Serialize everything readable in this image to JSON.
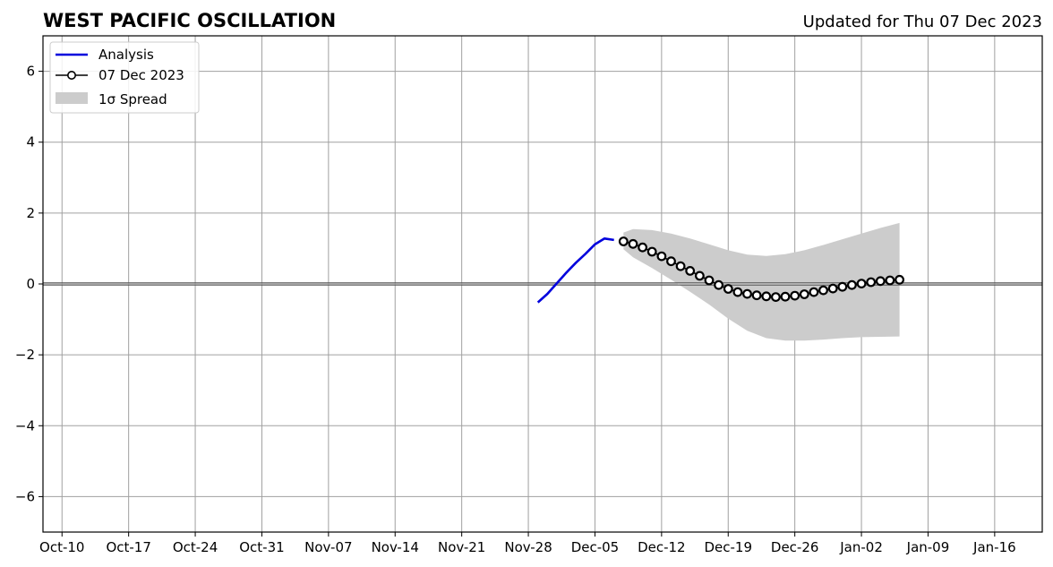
{
  "header": {
    "title": "WEST PACIFIC OSCILLATION",
    "updated": "Updated for Thu 07 Dec 2023"
  },
  "chart_data": {
    "type": "line",
    "title": "WEST PACIFIC OSCILLATION",
    "xlabel": "",
    "ylabel": "",
    "x_axis": {
      "type": "date",
      "range": [
        "2023-10-08",
        "2024-01-21"
      ],
      "ticks": [
        {
          "date": "2023-10-10",
          "label": "Oct-10"
        },
        {
          "date": "2023-10-17",
          "label": "Oct-17"
        },
        {
          "date": "2023-10-24",
          "label": "Oct-24"
        },
        {
          "date": "2023-10-31",
          "label": "Oct-31"
        },
        {
          "date": "2023-11-07",
          "label": "Nov-07"
        },
        {
          "date": "2023-11-14",
          "label": "Nov-14"
        },
        {
          "date": "2023-11-21",
          "label": "Nov-21"
        },
        {
          "date": "2023-11-28",
          "label": "Nov-28"
        },
        {
          "date": "2023-12-05",
          "label": "Dec-05"
        },
        {
          "date": "2023-12-12",
          "label": "Dec-12"
        },
        {
          "date": "2023-12-19",
          "label": "Dec-19"
        },
        {
          "date": "2023-12-26",
          "label": "Dec-26"
        },
        {
          "date": "2024-01-02",
          "label": "Jan-02"
        },
        {
          "date": "2024-01-09",
          "label": "Jan-09"
        },
        {
          "date": "2024-01-16",
          "label": "Jan-16"
        }
      ]
    },
    "y_axis": {
      "range": [
        -7,
        7
      ],
      "ticks": [
        {
          "value": -6,
          "label": "−6"
        },
        {
          "value": -4,
          "label": "−4"
        },
        {
          "value": -2,
          "label": "−2"
        },
        {
          "value": 0,
          "label": "0"
        },
        {
          "value": 2,
          "label": "2"
        },
        {
          "value": 4,
          "label": "4"
        },
        {
          "value": 6,
          "label": "6"
        }
      ]
    },
    "grid": true,
    "zero_line": true,
    "legend": {
      "placement": "top-left",
      "entries": [
        {
          "key": "analysis",
          "label": "Analysis"
        },
        {
          "key": "forecast",
          "label": "07 Dec 2023"
        },
        {
          "key": "spread",
          "label": "1σ Spread"
        }
      ]
    },
    "colors": {
      "analysis": "#0000dd",
      "forecast": "#000000",
      "spread": "#cccccc",
      "grid": "#a0a0a0"
    },
    "series": [
      {
        "key": "analysis",
        "name": "Analysis",
        "style": "line",
        "points": [
          {
            "date": "2023-11-29",
            "value": -0.52
          },
          {
            "date": "2023-11-30",
            "value": -0.28
          },
          {
            "date": "2023-12-01",
            "value": 0.02
          },
          {
            "date": "2023-12-02",
            "value": 0.32
          },
          {
            "date": "2023-12-03",
            "value": 0.6
          },
          {
            "date": "2023-12-04",
            "value": 0.85
          },
          {
            "date": "2023-12-05",
            "value": 1.12
          },
          {
            "date": "2023-12-06",
            "value": 1.28
          },
          {
            "date": "2023-12-07",
            "value": 1.24
          }
        ]
      },
      {
        "key": "forecast",
        "name": "07 Dec 2023",
        "style": "line-markers",
        "points": [
          {
            "date": "2023-12-08",
            "value": 1.2
          },
          {
            "date": "2023-12-09",
            "value": 1.13
          },
          {
            "date": "2023-12-10",
            "value": 1.03
          },
          {
            "date": "2023-12-11",
            "value": 0.91
          },
          {
            "date": "2023-12-12",
            "value": 0.78
          },
          {
            "date": "2023-12-13",
            "value": 0.64
          },
          {
            "date": "2023-12-14",
            "value": 0.5
          },
          {
            "date": "2023-12-15",
            "value": 0.37
          },
          {
            "date": "2023-12-16",
            "value": 0.23
          },
          {
            "date": "2023-12-17",
            "value": 0.1
          },
          {
            "date": "2023-12-18",
            "value": -0.03
          },
          {
            "date": "2023-12-19",
            "value": -0.14
          },
          {
            "date": "2023-12-20",
            "value": -0.23
          },
          {
            "date": "2023-12-21",
            "value": -0.28
          },
          {
            "date": "2023-12-22",
            "value": -0.32
          },
          {
            "date": "2023-12-23",
            "value": -0.35
          },
          {
            "date": "2023-12-24",
            "value": -0.37
          },
          {
            "date": "2023-12-25",
            "value": -0.36
          },
          {
            "date": "2023-12-26",
            "value": -0.33
          },
          {
            "date": "2023-12-27",
            "value": -0.29
          },
          {
            "date": "2023-12-28",
            "value": -0.23
          },
          {
            "date": "2023-12-29",
            "value": -0.18
          },
          {
            "date": "2023-12-30",
            "value": -0.13
          },
          {
            "date": "2023-12-31",
            "value": -0.08
          },
          {
            "date": "2024-01-01",
            "value": -0.03
          },
          {
            "date": "2024-01-02",
            "value": 0.01
          },
          {
            "date": "2024-01-03",
            "value": 0.05
          },
          {
            "date": "2024-01-04",
            "value": 0.08
          },
          {
            "date": "2024-01-05",
            "value": 0.1
          },
          {
            "date": "2024-01-06",
            "value": 0.12
          }
        ]
      }
    ],
    "spread": {
      "key": "spread",
      "name": "1σ Spread",
      "points": [
        {
          "date": "2023-12-08",
          "upper": 1.45,
          "lower": 0.98
        },
        {
          "date": "2023-12-09",
          "upper": 1.55,
          "lower": 0.75
        },
        {
          "date": "2023-12-11",
          "upper": 1.52,
          "lower": 0.45
        },
        {
          "date": "2023-12-13",
          "upper": 1.42,
          "lower": 0.12
        },
        {
          "date": "2023-12-15",
          "upper": 1.28,
          "lower": -0.22
        },
        {
          "date": "2023-12-17",
          "upper": 1.12,
          "lower": -0.58
        },
        {
          "date": "2023-12-19",
          "upper": 0.95,
          "lower": -0.98
        },
        {
          "date": "2023-12-21",
          "upper": 0.83,
          "lower": -1.32
        },
        {
          "date": "2023-12-23",
          "upper": 0.79,
          "lower": -1.53
        },
        {
          "date": "2023-12-25",
          "upper": 0.84,
          "lower": -1.6
        },
        {
          "date": "2023-12-27",
          "upper": 0.95,
          "lower": -1.6
        },
        {
          "date": "2023-12-29",
          "upper": 1.1,
          "lower": -1.57
        },
        {
          "date": "2023-12-31",
          "upper": 1.26,
          "lower": -1.53
        },
        {
          "date": "2024-01-02",
          "upper": 1.42,
          "lower": -1.5
        },
        {
          "date": "2024-01-04",
          "upper": 1.58,
          "lower": -1.49
        },
        {
          "date": "2024-01-06",
          "upper": 1.72,
          "lower": -1.48
        }
      ]
    }
  }
}
